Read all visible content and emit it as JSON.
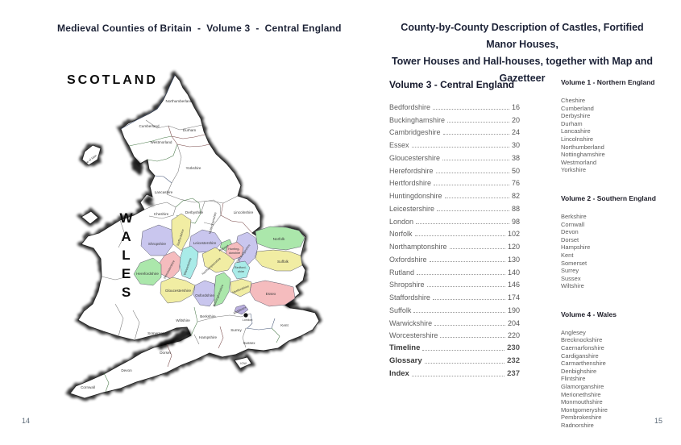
{
  "left_page": {
    "title": "Medieval Counties of Britain  -  Volume 3  -  Central England",
    "page_number": "14"
  },
  "right_page": {
    "header_line1": "County-by-County Description of Castles, Fortified Manor Houses,",
    "header_line2": "Tower Houses and Hall-houses, together with Map and Gazetteer",
    "page_number": "15",
    "toc": {
      "heading": "Volume 3 - Central England",
      "items": [
        {
          "name": "Bedfordshire",
          "page": "16",
          "bold": false
        },
        {
          "name": "Buckinghamshire",
          "page": "20",
          "bold": false
        },
        {
          "name": "Cambridgeshire",
          "page": "24",
          "bold": false
        },
        {
          "name": "Essex",
          "page": "30",
          "bold": false
        },
        {
          "name": "Gloucestershire",
          "page": "38",
          "bold": false
        },
        {
          "name": "Herefordshire",
          "page": "50",
          "bold": false
        },
        {
          "name": "Hertfordshire",
          "page": "76",
          "bold": false
        },
        {
          "name": "Huntingdonshire",
          "page": "82",
          "bold": false
        },
        {
          "name": "Leicestershire",
          "page": "88",
          "bold": false
        },
        {
          "name": "London",
          "page": "98",
          "bold": false
        },
        {
          "name": "Norfolk",
          "page": "102",
          "bold": false
        },
        {
          "name": "Northamptonshire",
          "page": "120",
          "bold": false
        },
        {
          "name": "Oxfordshire",
          "page": "130",
          "bold": false
        },
        {
          "name": "Rutland",
          "page": "140",
          "bold": false
        },
        {
          "name": "Shropshire",
          "page": "146",
          "bold": false
        },
        {
          "name": "Staffordshire",
          "page": "174",
          "bold": false
        },
        {
          "name": "Suffolk",
          "page": "190",
          "bold": false
        },
        {
          "name": "Warwickshire",
          "page": "204",
          "bold": false
        },
        {
          "name": "Worcestershire",
          "page": "220",
          "bold": false
        },
        {
          "name": "Timeline",
          "page": "230",
          "bold": true
        },
        {
          "name": "Glossary",
          "page": "232",
          "bold": true
        },
        {
          "name": "Index",
          "page": "237",
          "bold": true
        }
      ]
    },
    "other_volumes": [
      {
        "heading": "Volume 1 - Northern England",
        "counties": [
          "Cheshire",
          "Cumberland",
          "Derbyshire",
          "Durham",
          "Lancashire",
          "Lincolnshire",
          "Northumberland",
          "Nottinghamshire",
          "Westmorland",
          "Yorkshire"
        ]
      },
      {
        "heading": "Volume 2 - Southern England",
        "counties": [
          "Berkshire",
          "Cornwall",
          "Devon",
          "Dorset",
          "Hampshire",
          "Kent",
          "Somerset",
          "Surrey",
          "Sussex",
          "Wiltshire"
        ]
      },
      {
        "heading": "Volume 4 -  Wales",
        "counties": [
          "Anglesey",
          "Brecknockshire",
          "Caernarfonshire",
          "Cardiganshire",
          "Carmarthenshire",
          "Denbighshire",
          "Flintshire",
          "Glamorganshire",
          "Merionethshire",
          "Monmouthshire",
          "Montgomeryshire",
          "Pembrokeshire",
          "Radnorshire"
        ]
      }
    ]
  },
  "map": {
    "scotland_label": "SCOTLAND",
    "wales_label": "WALES",
    "palette": {
      "lavender": "#c9c6ee",
      "yellow": "#f1eda3",
      "green": "#abe7ab",
      "pink": "#f5bcbe",
      "cyan": "#a9ebe8",
      "purple": "#b9aede",
      "london_dot": "#111111"
    },
    "labels": {
      "northumberland": "Northumberland",
      "cumberland": "Cumberland",
      "durham": "Durham",
      "westmorland": "Westmorland",
      "yorkshire": "Yorkshire",
      "lancashire": "Lancashire",
      "cheshire": "Cheshire",
      "derbyshire": "Derbyshire",
      "nottinghamshire": "Nottinghamshire",
      "lincolnshire": "Lincolnshire",
      "shropshire": "Shropshire",
      "staffordshire": "Staffordshire",
      "leicestershire": "Leicestershire",
      "rutland": "Rutland",
      "norfolk": "Norfolk",
      "suffolk": "Suffolk",
      "huntingdonshire": [
        "Hunting-",
        "donshire"
      ],
      "cambridgeshire": "Cambridgeshire",
      "herefordshire": "Herefordshire",
      "worcestershire": "Worcestershire",
      "warwickshire": "Warwickshire",
      "northamptonshire": "Northamptonshire",
      "bedfordshire": [
        "Bedford-",
        "shire"
      ],
      "buckinghamshire": "Buckinghamshire",
      "oxfordshire": "Oxfordshire",
      "gloucestershire": "Gloucestershire",
      "hertfordshire": "Hertfordshire",
      "middlesex": "Middlesex",
      "essex": "Essex",
      "london": "London",
      "berkshire": "Berkshire",
      "wiltshire": "Wiltshire",
      "somerset": "Somerset",
      "hampshire": "Hampshire",
      "surrey": "Surrey",
      "kent": "Kent",
      "sussex": "Sussex",
      "dorset": "Dorset",
      "devon": "Devon",
      "cornwall": "Cornwall",
      "iow": "IOW",
      "isle_of_man": "Isle of Man"
    }
  }
}
